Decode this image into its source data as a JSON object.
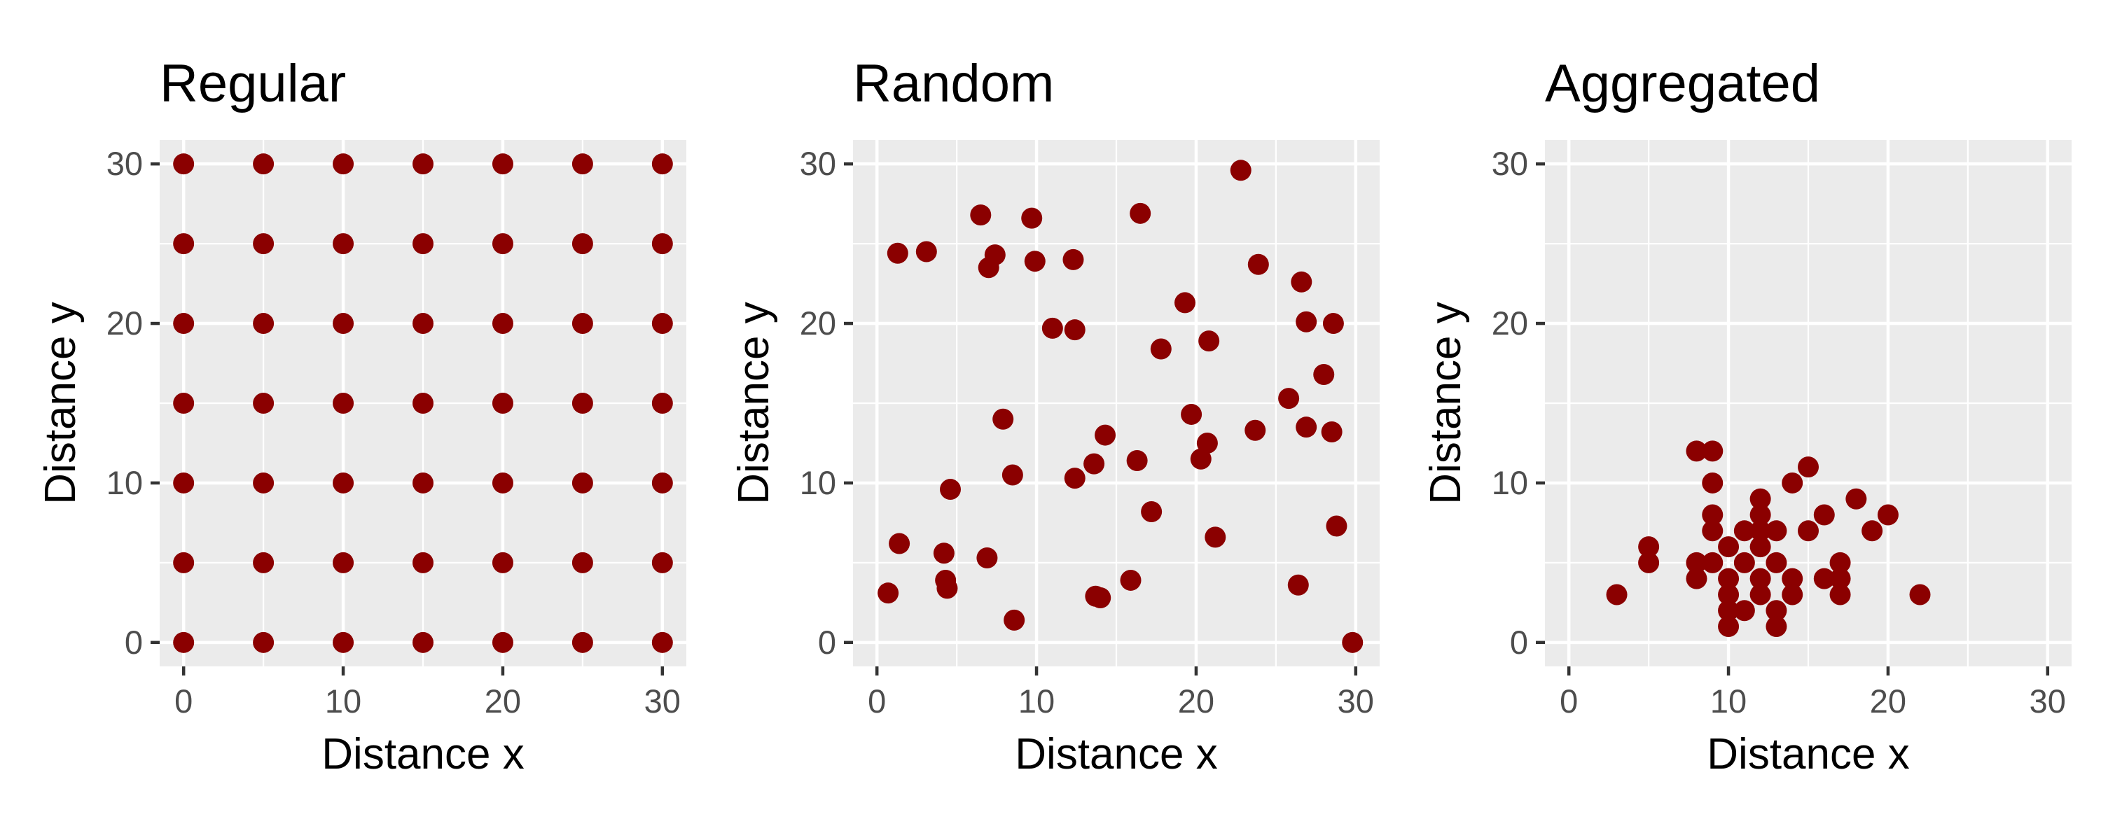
{
  "colors": {
    "point": "#8b0000",
    "panel_background": "#ebebeb",
    "grid": "#ffffff",
    "tick_label": "#4d4d4d",
    "text": "#000000"
  },
  "chart_data": [
    {
      "type": "scatter",
      "title": "Regular",
      "xlabel": "Distance x",
      "ylabel": "Distance y",
      "xlim": [
        -1.5,
        31.5
      ],
      "ylim": [
        -1.5,
        31.5
      ],
      "x_ticks": [
        0,
        10,
        20,
        30
      ],
      "y_ticks": [
        0,
        10,
        20,
        30
      ],
      "grid": true,
      "points": [
        [
          0,
          0
        ],
        [
          5,
          0
        ],
        [
          10,
          0
        ],
        [
          15,
          0
        ],
        [
          20,
          0
        ],
        [
          25,
          0
        ],
        [
          30,
          0
        ],
        [
          0,
          5
        ],
        [
          5,
          5
        ],
        [
          10,
          5
        ],
        [
          15,
          5
        ],
        [
          20,
          5
        ],
        [
          25,
          5
        ],
        [
          30,
          5
        ],
        [
          0,
          10
        ],
        [
          5,
          10
        ],
        [
          10,
          10
        ],
        [
          15,
          10
        ],
        [
          20,
          10
        ],
        [
          25,
          10
        ],
        [
          30,
          10
        ],
        [
          0,
          15
        ],
        [
          5,
          15
        ],
        [
          10,
          15
        ],
        [
          15,
          15
        ],
        [
          20,
          15
        ],
        [
          25,
          15
        ],
        [
          30,
          15
        ],
        [
          0,
          20
        ],
        [
          5,
          20
        ],
        [
          10,
          20
        ],
        [
          15,
          20
        ],
        [
          20,
          20
        ],
        [
          25,
          20
        ],
        [
          30,
          20
        ],
        [
          0,
          25
        ],
        [
          5,
          25
        ],
        [
          10,
          25
        ],
        [
          15,
          25
        ],
        [
          20,
          25
        ],
        [
          25,
          25
        ],
        [
          30,
          25
        ],
        [
          0,
          30
        ],
        [
          5,
          30
        ],
        [
          10,
          30
        ],
        [
          15,
          30
        ],
        [
          20,
          30
        ],
        [
          25,
          30
        ],
        [
          30,
          30
        ]
      ]
    },
    {
      "type": "scatter",
      "title": "Random",
      "xlabel": "Distance x",
      "ylabel": "Distance y",
      "xlim": [
        -1.5,
        31.5
      ],
      "ylim": [
        -1.5,
        31.5
      ],
      "x_ticks": [
        0,
        10,
        20,
        30
      ],
      "y_ticks": [
        0,
        10,
        20,
        30
      ],
      "grid": true,
      "points": [
        [
          0.7,
          3.1
        ],
        [
          1.3,
          24.4
        ],
        [
          1.4,
          6.2
        ],
        [
          3.1,
          24.5
        ],
        [
          4.2,
          5.6
        ],
        [
          4.3,
          3.9
        ],
        [
          4.4,
          3.4
        ],
        [
          4.6,
          9.6
        ],
        [
          6.5,
          26.8
        ],
        [
          6.9,
          5.3
        ],
        [
          7.0,
          23.5
        ],
        [
          7.4,
          24.3
        ],
        [
          7.9,
          14.0
        ],
        [
          8.5,
          10.5
        ],
        [
          8.6,
          1.4
        ],
        [
          9.7,
          26.6
        ],
        [
          9.9,
          23.9
        ],
        [
          11.0,
          19.7
        ],
        [
          12.3,
          24.0
        ],
        [
          12.4,
          19.6
        ],
        [
          12.4,
          10.3
        ],
        [
          13.6,
          11.2
        ],
        [
          13.7,
          2.9
        ],
        [
          14.0,
          2.8
        ],
        [
          14.3,
          13.0
        ],
        [
          15.9,
          3.9
        ],
        [
          16.3,
          11.4
        ],
        [
          16.5,
          26.9
        ],
        [
          17.2,
          8.2
        ],
        [
          17.8,
          18.4
        ],
        [
          19.3,
          21.3
        ],
        [
          19.7,
          14.3
        ],
        [
          20.3,
          11.5
        ],
        [
          20.7,
          12.5
        ],
        [
          20.8,
          18.9
        ],
        [
          21.2,
          6.6
        ],
        [
          22.8,
          29.6
        ],
        [
          23.7,
          13.3
        ],
        [
          23.9,
          23.7
        ],
        [
          25.8,
          15.3
        ],
        [
          26.4,
          3.6
        ],
        [
          26.6,
          22.6
        ],
        [
          26.9,
          20.1
        ],
        [
          26.9,
          13.5
        ],
        [
          28.0,
          16.8
        ],
        [
          28.5,
          13.2
        ],
        [
          28.6,
          20.0
        ],
        [
          28.8,
          7.3
        ],
        [
          29.8,
          0.0
        ]
      ]
    },
    {
      "type": "scatter",
      "title": "Aggregated",
      "xlabel": "Distance x",
      "ylabel": "Distance y",
      "xlim": [
        -1.5,
        31.5
      ],
      "ylim": [
        -1.5,
        31.5
      ],
      "x_ticks": [
        0,
        10,
        20,
        30
      ],
      "y_ticks": [
        0,
        10,
        20,
        30
      ],
      "grid": true,
      "points": [
        [
          3,
          3
        ],
        [
          5,
          5
        ],
        [
          5,
          6
        ],
        [
          8,
          4
        ],
        [
          8,
          5
        ],
        [
          8,
          12
        ],
        [
          9,
          12
        ],
        [
          9,
          10
        ],
        [
          9,
          8
        ],
        [
          9,
          7
        ],
        [
          9,
          5
        ],
        [
          10,
          6
        ],
        [
          10,
          4
        ],
        [
          10,
          3
        ],
        [
          10,
          2
        ],
        [
          10,
          1
        ],
        [
          11,
          7
        ],
        [
          11,
          5
        ],
        [
          11,
          2
        ],
        [
          12,
          9
        ],
        [
          12,
          8
        ],
        [
          12,
          7
        ],
        [
          12,
          6
        ],
        [
          12,
          4
        ],
        [
          12,
          3
        ],
        [
          13,
          7
        ],
        [
          13,
          5
        ],
        [
          13,
          2
        ],
        [
          13,
          1
        ],
        [
          14,
          10
        ],
        [
          14,
          4
        ],
        [
          14,
          3
        ],
        [
          15,
          11
        ],
        [
          15,
          7
        ],
        [
          16,
          8
        ],
        [
          16,
          4
        ],
        [
          17,
          5
        ],
        [
          17,
          4
        ],
        [
          17,
          3
        ],
        [
          18,
          9
        ],
        [
          19,
          7
        ],
        [
          20,
          8
        ],
        [
          22,
          3
        ]
      ]
    }
  ]
}
